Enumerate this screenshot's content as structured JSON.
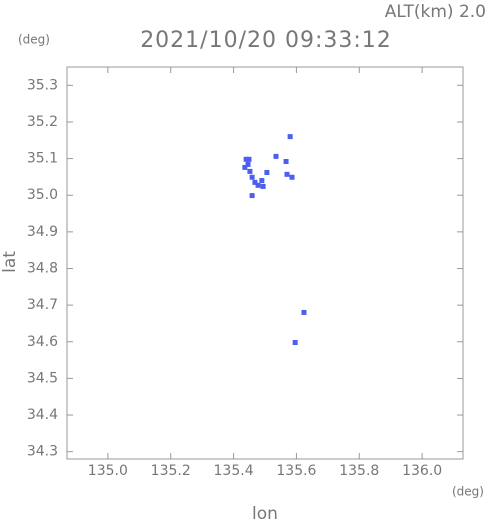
{
  "chart_data": {
    "type": "scatter",
    "title": "2021/10/20 09:33:12",
    "subtitle": "ALT(km) 2.0",
    "y_unit": "(deg)",
    "x_unit": "(deg)",
    "xlabel": "lon",
    "ylabel": "lat",
    "color": "#4b5ef0",
    "xlim": [
      134.87,
      136.13
    ],
    "ylim": [
      34.28,
      35.35
    ],
    "xticks": [
      {
        "value": 135,
        "label": "135.0"
      },
      135.2,
      135.4,
      135.6,
      135.8,
      {
        "value": 136,
        "label": "136.0"
      }
    ],
    "yticks": [
      34.3,
      34.4,
      34.5,
      34.6,
      34.7,
      34.8,
      34.9,
      {
        "value": 35,
        "label": "35.0"
      },
      35.1,
      35.2,
      35.3
    ],
    "x": [
      135.44,
      135.449,
      135.446,
      135.436,
      135.452,
      135.459,
      135.468,
      135.478,
      135.49,
      135.459,
      135.506,
      135.494,
      135.535,
      135.567,
      135.57,
      135.586,
      135.58,
      135.624,
      135.596
    ],
    "y": [
      35.098,
      35.098,
      35.084,
      35.076,
      35.065,
      35.049,
      35.035,
      35.027,
      35.04,
      34.999,
      35.062,
      35.024,
      35.106,
      35.092,
      35.057,
      35.049,
      35.16,
      34.68,
      34.598
    ]
  }
}
